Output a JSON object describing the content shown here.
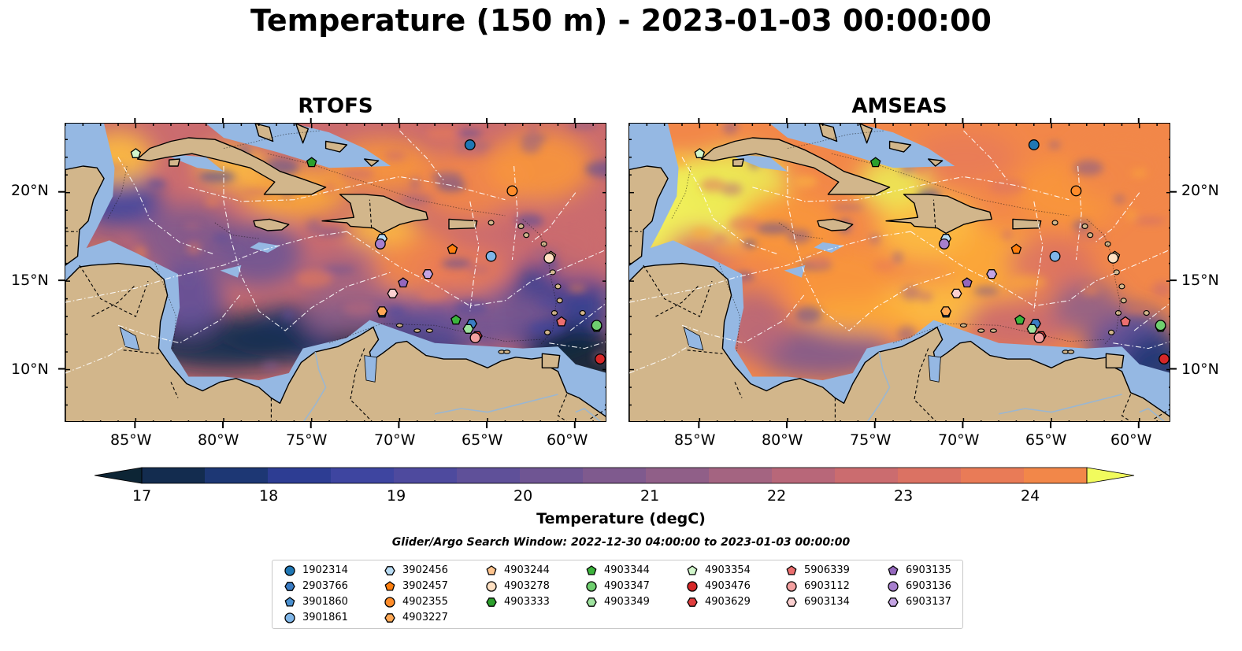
{
  "title": "Temperature (150 m) - 2023-01-03 00:00:00",
  "panels": [
    {
      "title": "RTOFS",
      "warmth": 0.35
    },
    {
      "title": "AMSEAS",
      "warmth": 0.75
    }
  ],
  "lat_labels": [
    "20°N",
    "15°N",
    "10°N"
  ],
  "lon_labels": [
    "85°W",
    "80°W",
    "75°W",
    "70°W",
    "65°W",
    "60°W"
  ],
  "colorbar": {
    "title": "Temperature (degC)",
    "ticks": [
      "17",
      "18",
      "19",
      "20",
      "21",
      "22",
      "23",
      "24"
    ],
    "min": 17,
    "max": 24.5,
    "step": 0.5,
    "colors": [
      "#0d2535",
      "#132c4f",
      "#1d3774",
      "#2d3d93",
      "#3e45a0",
      "#4e4a9e",
      "#5f5099",
      "#6f5593",
      "#7f5a8e",
      "#905f88",
      "#a46481",
      "#b86779",
      "#cb6c6f",
      "#db7263",
      "#e97b57",
      "#f28749",
      "#f8963c",
      "#fca838",
      "#fdbc40",
      "#f7d14b",
      "#ecea55",
      "#f1fb5d"
    ]
  },
  "search_window": "Glider/Argo Search Window: 2022-12-30 04:00:00 to 2023-01-03 00:00:00",
  "floats": [
    {
      "id": "1902314",
      "marker": "circle",
      "color": "#1f77b4",
      "lon": -66.0,
      "lat": 22.7
    },
    {
      "id": "2903766",
      "marker": "hexagon",
      "color": "#3a7cc4",
      "lon": -65.9,
      "lat": 12.6
    },
    {
      "id": "3901860",
      "marker": "pentagon",
      "color": "#4a90d0",
      "lon": -71.0,
      "lat": 13.2
    },
    {
      "id": "3901861",
      "marker": "circle",
      "color": "#7fb6e8",
      "lon": -64.8,
      "lat": 16.4
    },
    {
      "id": "3902456",
      "marker": "hexagon",
      "color": "#b9dcf4",
      "lon": -71.0,
      "lat": 17.4
    },
    {
      "id": "3902457",
      "marker": "pentagon",
      "color": "#ff7f0e",
      "lon": -67.0,
      "lat": 16.8
    },
    {
      "id": "4902355",
      "marker": "circle",
      "color": "#ff8c2a",
      "lon": -63.6,
      "lat": 20.1
    },
    {
      "id": "4903227",
      "marker": "hexagon",
      "color": "#ffa855",
      "lon": -71.0,
      "lat": 13.3
    },
    {
      "id": "4903244",
      "marker": "pentagon",
      "color": "#ffc58f",
      "lon": -61.4,
      "lat": 16.4
    },
    {
      "id": "4903278",
      "marker": "circle",
      "color": "#ffe0c2",
      "lon": -61.5,
      "lat": 16.3
    },
    {
      "id": "4903333",
      "marker": "hexagon",
      "color": "#2ca02c",
      "lon": -58.8,
      "lat": 12.4
    },
    {
      "id": "4903344",
      "marker": "pentagon",
      "color": "#3cb43c",
      "lon": -66.8,
      "lat": 12.8
    },
    {
      "id": "4903347",
      "marker": "circle",
      "color": "#6fcf6f",
      "lon": -58.8,
      "lat": 12.5
    },
    {
      "id": "4903349",
      "marker": "hexagon",
      "color": "#9fe39f",
      "lon": -66.1,
      "lat": 12.3
    },
    {
      "id": "4903354",
      "marker": "pentagon",
      "color": "#d2f7cc",
      "lon": -85.0,
      "lat": 22.2
    },
    {
      "id": "4903476",
      "marker": "circle",
      "color": "#d62728",
      "lon": -58.6,
      "lat": 10.6
    },
    {
      "id": "4903629",
      "marker": "hexagon",
      "color": "#e03e3e",
      "lon": -65.6,
      "lat": 11.9
    },
    {
      "id": "5906339",
      "marker": "pentagon",
      "color": "#ec6f6f",
      "lon": -60.8,
      "lat": 12.7
    },
    {
      "id": "6903112",
      "marker": "circle",
      "color": "#f3a0a0",
      "lon": -65.7,
      "lat": 11.8
    },
    {
      "id": "6903134",
      "marker": "hexagon",
      "color": "#fbd0d0",
      "lon": -70.4,
      "lat": 14.3
    },
    {
      "id": "6903135",
      "marker": "pentagon",
      "color": "#9467bd",
      "lon": -69.8,
      "lat": 14.9
    },
    {
      "id": "6903136",
      "marker": "circle",
      "color": "#a77fce",
      "lon": -71.1,
      "lat": 17.1
    },
    {
      "id": "6903137",
      "marker": "hexagon",
      "color": "#c4a4e3",
      "lon": -68.4,
      "lat": 15.4
    }
  ],
  "extra_markers": [
    {
      "marker": "pentagon",
      "color": "#2ca02c",
      "lon": -75.0,
      "lat": 21.7
    }
  ]
}
